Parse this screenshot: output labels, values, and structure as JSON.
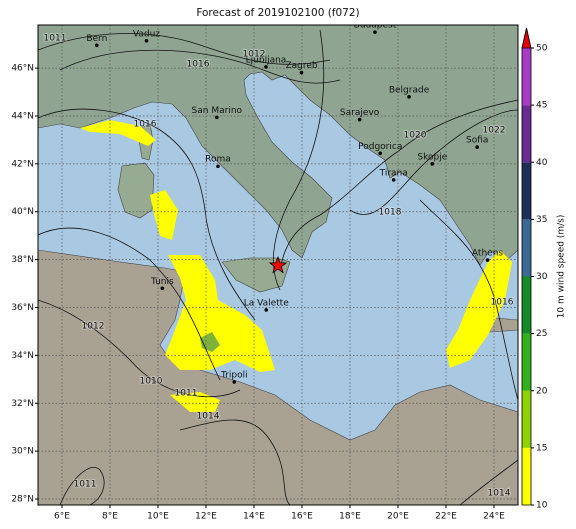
{
  "map": {
    "title": "Forecast of 2019102100 (f072)",
    "xlim": [
      5,
      25
    ],
    "ylim": [
      27.75,
      47.8
    ],
    "xticks": [
      {
        "value": 6,
        "label": "6°E"
      },
      {
        "value": 8,
        "label": "8°E"
      },
      {
        "value": 10,
        "label": "10°E"
      },
      {
        "value": 12,
        "label": "12°E"
      },
      {
        "value": 14,
        "label": "14°E"
      },
      {
        "value": 16,
        "label": "16°E"
      },
      {
        "value": 18,
        "label": "18°E"
      },
      {
        "value": 20,
        "label": "20°E"
      },
      {
        "value": 22,
        "label": "22°E"
      },
      {
        "value": 24,
        "label": "24°E"
      }
    ],
    "yticks": [
      {
        "value": 28,
        "label": "28°N"
      },
      {
        "value": 30,
        "label": "30°N"
      },
      {
        "value": 32,
        "label": "32°N"
      },
      {
        "value": 34,
        "label": "34°N"
      },
      {
        "value": 36,
        "label": "36°N"
      },
      {
        "value": 38,
        "label": "38°N"
      },
      {
        "value": 40,
        "label": "40°N"
      },
      {
        "value": 42,
        "label": "42°N"
      },
      {
        "value": 44,
        "label": "44°N"
      },
      {
        "value": 46,
        "label": "46°N"
      }
    ],
    "grid": true,
    "cities": [
      {
        "name": "Bern",
        "lon": 7.45,
        "lat": 46.95
      },
      {
        "name": "Vaduz",
        "lon": 9.52,
        "lat": 47.14
      },
      {
        "name": "Budapest",
        "lon": 19.04,
        "lat": 47.5
      },
      {
        "name": "Ljubljana",
        "lon": 14.5,
        "lat": 46.05
      },
      {
        "name": "Zagreb",
        "lon": 15.98,
        "lat": 45.81
      },
      {
        "name": "San Marino",
        "lon": 12.45,
        "lat": 43.94
      },
      {
        "name": "Belgrade",
        "lon": 20.46,
        "lat": 44.8
      },
      {
        "name": "Sarajevo",
        "lon": 18.4,
        "lat": 43.85
      },
      {
        "name": "Sofia",
        "lon": 23.3,
        "lat": 42.7
      },
      {
        "name": "Podgorica",
        "lon": 19.26,
        "lat": 42.44
      },
      {
        "name": "Skopje",
        "lon": 21.43,
        "lat": 42.0
      },
      {
        "name": "Tirana",
        "lon": 19.82,
        "lat": 41.33
      },
      {
        "name": "Roma",
        "lon": 12.5,
        "lat": 41.9
      },
      {
        "name": "Athens",
        "lon": 23.73,
        "lat": 37.98
      },
      {
        "name": "Tunis",
        "lon": 10.18,
        "lat": 36.8
      },
      {
        "name": "La Valette",
        "lon": 14.51,
        "lat": 35.9
      },
      {
        "name": "Tripoli",
        "lon": 13.18,
        "lat": 32.89
      }
    ],
    "marker": {
      "lon": 15.0,
      "lat": 37.75,
      "color": "#ff0000"
    },
    "isobar_labels": [
      "1011",
      "1016",
      "1012",
      "1016",
      "1020",
      "1022",
      "1018",
      "1016",
      "1012",
      "1010",
      "1011",
      "1014",
      "1011",
      "1014"
    ],
    "colorbar": {
      "label": "10 m wind speed (m/s)",
      "ticks": [
        10,
        15,
        20,
        25,
        30,
        35,
        40,
        45,
        50
      ],
      "colors": [
        "#ffff00",
        "#8fd400",
        "#33b01e",
        "#148a28",
        "#3a6a94",
        "#1e2f5c",
        "#6a2c91",
        "#a93cc4"
      ],
      "extend_color": "#e60000"
    }
  }
}
